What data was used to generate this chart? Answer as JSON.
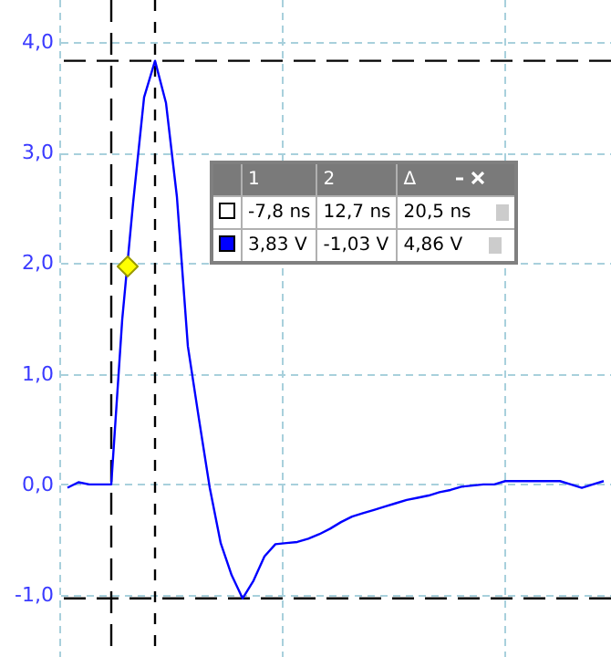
{
  "chart_data": {
    "type": "line",
    "categories": [
      null,
      null,
      null,
      null,
      null,
      null,
      null,
      null,
      null,
      null,
      null,
      null,
      null,
      null,
      null,
      null,
      null,
      null,
      null,
      null,
      null,
      null,
      null,
      null,
      null,
      null,
      null,
      null,
      null,
      null,
      null,
      null,
      null,
      null,
      null,
      null,
      null,
      null,
      null,
      null,
      null,
      null,
      null,
      null,
      null,
      null,
      null,
      null,
      null,
      null
    ],
    "series": [
      {
        "color": "#0000ff",
        "values": [
          -0.03,
          0.02,
          0,
          0,
          0,
          1.49,
          2.55,
          3.5,
          3.83,
          3.45,
          2.6,
          1.25,
          0.6,
          -0.03,
          -0.53,
          -0.82,
          -1.03,
          -0.87,
          -0.65,
          -0.54,
          -0.53,
          -0.52,
          -0.49,
          -0.45,
          -0.4,
          -0.34,
          -0.29,
          -0.26,
          -0.23,
          -0.2,
          -0.17,
          -0.14,
          -0.12,
          -0.1,
          -0.07,
          -0.05,
          -0.02,
          -0.01,
          0,
          0,
          0.03,
          0.03,
          0.03,
          0.03,
          0.03,
          0.03,
          0,
          -0.03,
          0,
          0.03
        ]
      }
    ],
    "ylim": [
      -1.56,
      4.38
    ],
    "yticks": [
      {
        "value": -1,
        "label": "-1,0"
      },
      {
        "value": 0,
        "label": "0,0"
      },
      {
        "value": 1,
        "label": "1,0"
      },
      {
        "value": 2,
        "label": "2,0"
      },
      {
        "value": 3,
        "label": "3,0"
      },
      {
        "value": 4,
        "label": "4,0"
      }
    ],
    "tick_labels": "y",
    "grid": true,
    "line_style": "solid",
    "ref_lines": [
      {
        "axis": "y",
        "value": 3.83,
        "color": "#000000",
        "line_style": "dashed"
      },
      {
        "axis": "y",
        "value": -1.03,
        "color": "#000000",
        "line_style": "dashed"
      }
    ],
    "annotations": [
      "1",
      "2",
      "Δ",
      "-7,8 ns",
      "12,7 ns",
      "20,5 ns",
      "3,83 V",
      "-1,03 V",
      "4,86 V"
    ]
  }
}
